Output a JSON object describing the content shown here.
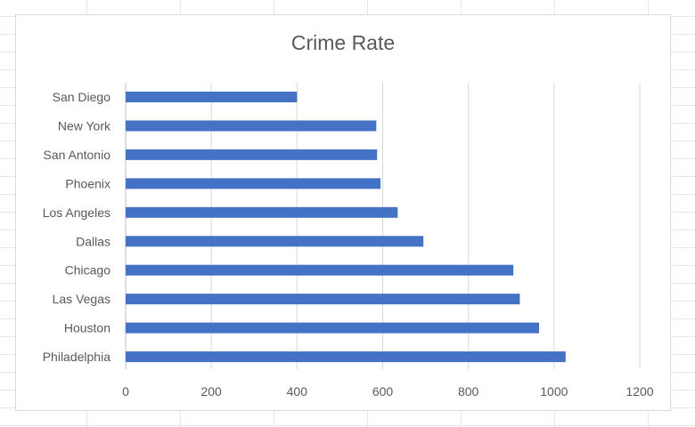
{
  "chart_data": {
    "type": "bar",
    "orientation": "horizontal",
    "title": "Crime Rate",
    "xlabel": "",
    "ylabel": "",
    "categories": [
      "San Diego",
      "New York",
      "San Antonio",
      "Phoenix",
      "Los Angeles",
      "Dallas",
      "Chicago",
      "Las Vegas",
      "Houston",
      "Philadelphia"
    ],
    "values": [
      400,
      585,
      587,
      595,
      635,
      695,
      905,
      920,
      965,
      1027
    ],
    "xlim": [
      0,
      1200
    ],
    "xticks": [
      0,
      200,
      400,
      600,
      800,
      1000,
      1200
    ],
    "grid": "vertical",
    "legend": "none",
    "bar_color": "#4472c4"
  }
}
